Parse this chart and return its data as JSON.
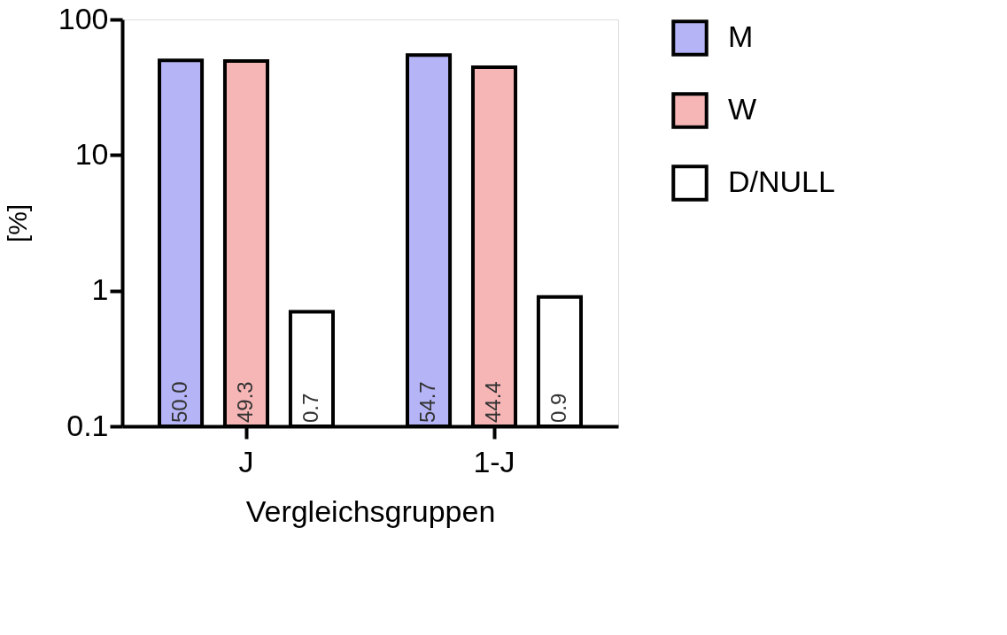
{
  "chart_data": {
    "type": "bar",
    "xlabel": "Vergleichsgruppen",
    "ylabel": "[%]",
    "categories": [
      "J",
      "1-J"
    ],
    "series": [
      {
        "name": "M",
        "color": "#b4b4f6",
        "values": [
          50.0,
          54.7
        ],
        "value_labels": [
          "50.0",
          "54.7"
        ]
      },
      {
        "name": "W",
        "color": "#f7b6b6",
        "values": [
          49.3,
          44.4
        ],
        "value_labels": [
          "49.3",
          "44.4"
        ]
      },
      {
        "name": "D/NULL",
        "color": "#ffffff",
        "values": [
          0.7,
          0.9
        ],
        "value_labels": [
          "0.7",
          "0.9"
        ]
      }
    ],
    "log": true,
    "ylim": [
      0.1,
      100
    ],
    "yticks": [
      0.1,
      1,
      10,
      100
    ],
    "grid": false,
    "legend": "top right"
  }
}
